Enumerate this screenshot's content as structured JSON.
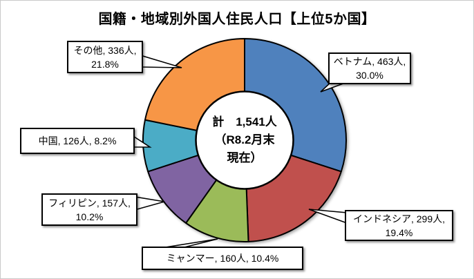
{
  "chart_data": {
    "type": "pie",
    "subtype": "donut",
    "title": "国籍・地域別外国人住民人口【上位5か国】",
    "direction": "clockwise",
    "start_angle_deg": 0,
    "total_value": 1541,
    "unit": "人",
    "center_lines": [
      "計　1,541人",
      "（R8.2月末",
      "現在）"
    ],
    "legend": "none",
    "segments": [
      {
        "name": "ベトナム",
        "value": 463,
        "percent": 30.0,
        "color": "#4F81BD",
        "callout_lines": [
          "ベトナム, 463人,",
          "30.0%"
        ]
      },
      {
        "name": "インドネシア",
        "value": 299,
        "percent": 19.4,
        "color": "#C0504D",
        "callout_lines": [
          "インドネシア, 299人,",
          "19.4%"
        ]
      },
      {
        "name": "ミャンマー",
        "value": 160,
        "percent": 10.4,
        "color": "#9BBB59",
        "callout_lines": [
          "ミャンマー, 160人, 10.4%"
        ]
      },
      {
        "name": "フィリピン",
        "value": 157,
        "percent": 10.2,
        "color": "#8064A2",
        "callout_lines": [
          "フィリピン, 157人,",
          "10.2%"
        ]
      },
      {
        "name": "中国",
        "value": 126,
        "percent": 8.2,
        "color": "#4BACC6",
        "callout_lines": [
          "中国, 126人, 8.2%"
        ]
      },
      {
        "name": "その他",
        "value": 336,
        "percent": 21.8,
        "color": "#F79646",
        "callout_lines": [
          "その他, 336人,",
          "21.8%"
        ]
      }
    ]
  }
}
